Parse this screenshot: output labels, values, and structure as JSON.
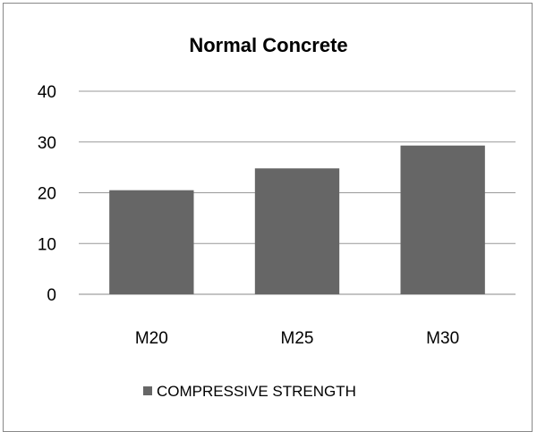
{
  "chart_data": {
    "type": "bar",
    "title": "Normal Concrete",
    "xlabel": "",
    "ylabel": "",
    "categories": [
      "M20",
      "M25",
      "M30"
    ],
    "series": [
      {
        "name": "COMPRESSIVE STRENGTH",
        "values": [
          20.5,
          24.8,
          29.3
        ],
        "color": "#666666"
      }
    ],
    "ylim": [
      0,
      40
    ],
    "yticks": [
      0,
      10,
      20,
      30,
      40
    ],
    "grid": true,
    "grid_color": "#999999",
    "legend_position": "bottom"
  }
}
